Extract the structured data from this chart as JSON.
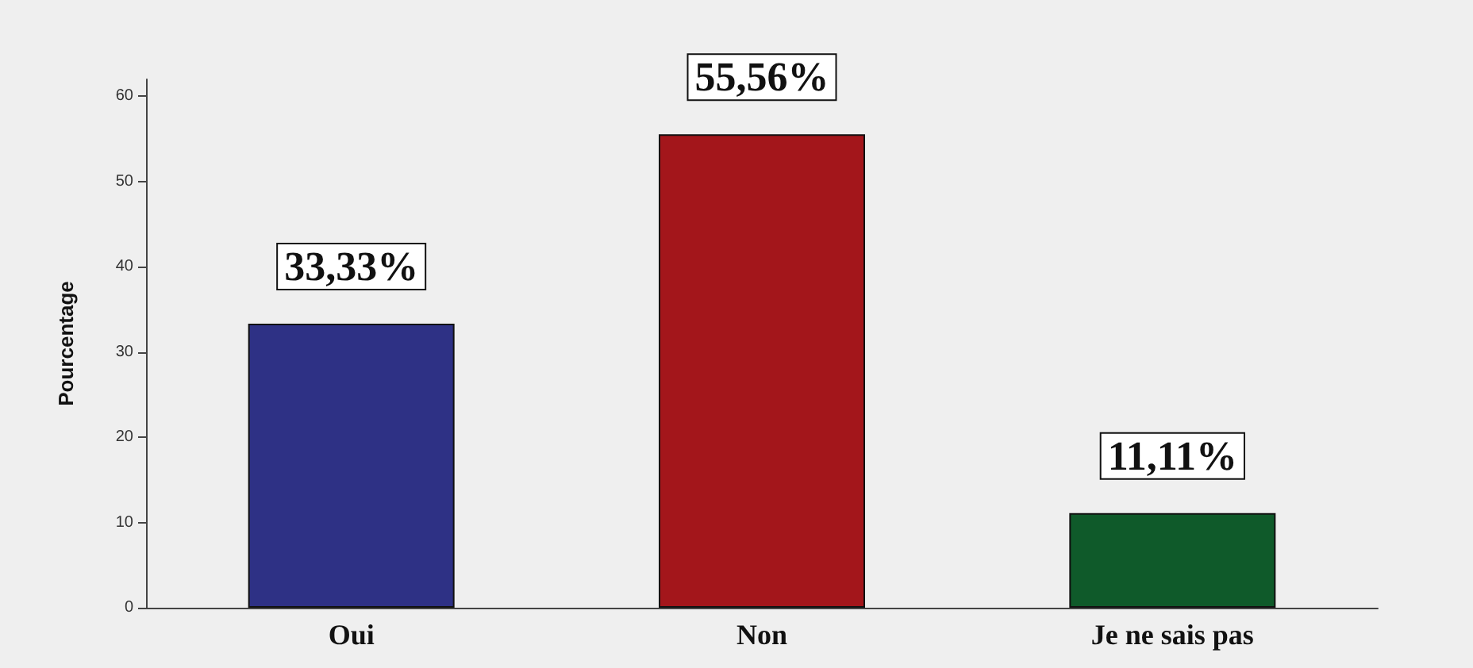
{
  "chart_data": {
    "type": "bar",
    "ylabel": "Pourcentage",
    "categories": [
      "Oui",
      "Non",
      "Je ne sais pas"
    ],
    "values": [
      33.33,
      55.56,
      11.11
    ],
    "colors": [
      "#2e3185",
      "#a3161b",
      "#0f5a2a"
    ],
    "value_labels": [
      "33,33%",
      "55,56%",
      "11,11%"
    ],
    "ylim": [
      0,
      62
    ],
    "yticks": [
      0,
      10,
      20,
      30,
      40,
      50,
      60
    ],
    "grid": false
  }
}
